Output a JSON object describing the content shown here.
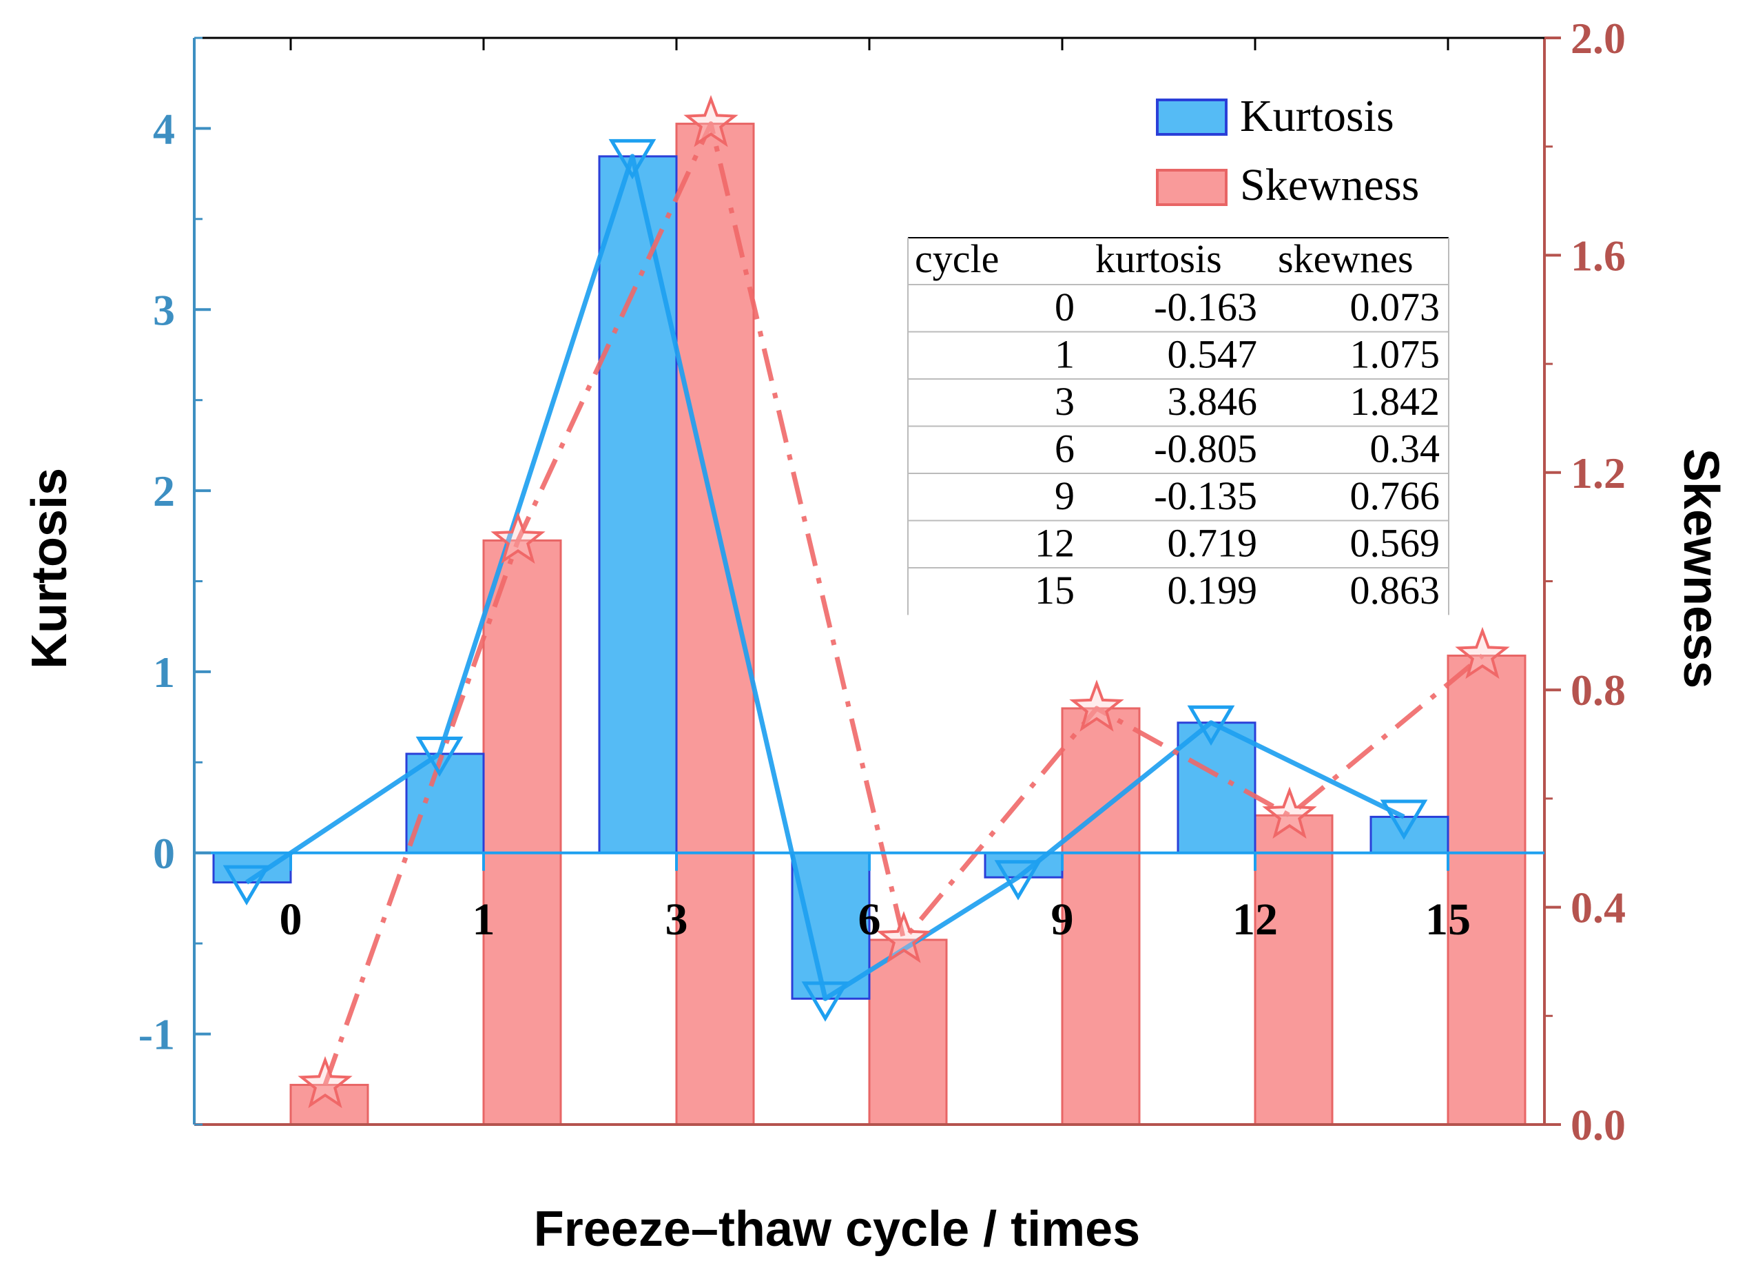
{
  "chart_data": {
    "type": "bar",
    "categories": [
      "0",
      "1",
      "3",
      "6",
      "9",
      "12",
      "15"
    ],
    "series": [
      {
        "name": "Kurtosis",
        "axis": "left",
        "values": [
          -0.163,
          0.547,
          3.846,
          -0.805,
          -0.135,
          0.719,
          0.199
        ]
      },
      {
        "name": "Skewness",
        "axis": "right",
        "values": [
          0.073,
          1.075,
          1.842,
          0.34,
          0.766,
          0.569,
          0.863
        ]
      }
    ],
    "xlabel": "Freeze–thaw cycle / times",
    "ylabel_left": "Kurtosis",
    "ylabel_right": "Skewness",
    "ylim_left": [
      -1.5,
      4.5
    ],
    "ylim_right": [
      0.0,
      2.0
    ],
    "yticks_left": [
      "-1",
      "0",
      "1",
      "2",
      "3",
      "4"
    ],
    "yticks_right": [
      "0.0",
      "0.4",
      "0.8",
      "1.2",
      "1.6",
      "2.0"
    ],
    "legend": {
      "position": "top-right",
      "entries": [
        "Kurtosis",
        "Skewness"
      ]
    },
    "inset_table": {
      "headers": [
        "cycle",
        "kurtosis",
        "skewnes"
      ],
      "rows": [
        [
          "0",
          "-0.163",
          "0.073"
        ],
        [
          "1",
          "0.547",
          "1.075"
        ],
        [
          "3",
          "3.846",
          "1.842"
        ],
        [
          "6",
          "-0.805",
          "0.34"
        ],
        [
          "9",
          "-0.135",
          "0.766"
        ],
        [
          "12",
          "0.719",
          "0.569"
        ],
        [
          "15",
          "0.199",
          "0.863"
        ]
      ]
    },
    "colors": {
      "kurtosis_fill": "#55bbf5",
      "kurtosis_edge": "#2a3fd8",
      "kurtosis_line": "#1ea0f0",
      "skewness_fill": "#f99a9a",
      "skewness_edge": "#e86565",
      "skewness_line": "#f06868",
      "left_axis": "#3d8fc2",
      "right_axis": "#b5534e"
    }
  }
}
